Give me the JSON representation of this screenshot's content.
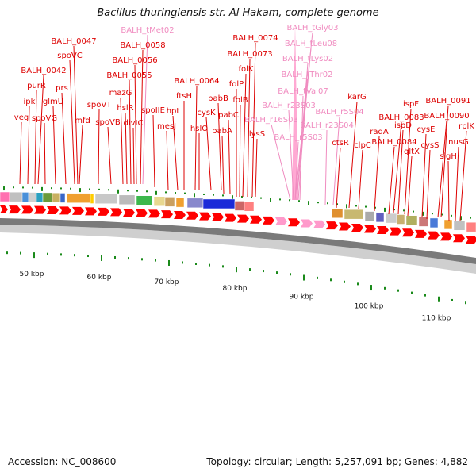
{
  "title": "Bacillus thuringiensis str. Al Hakam, complete genome",
  "accession": "Accession: NC_008600",
  "stats": "Topology: circular; Length: 5,257,091 bp; Genes: 4,882",
  "colors": {
    "gene_label": "#dd0000",
    "rna_label": "#f08cc0",
    "cds_arrow": "#ff0000",
    "rna_arrow": "#ff9acb",
    "tick": "#1a8a1a",
    "backbone": "#bbbbbb"
  },
  "scale_labels": [
    "50 kbp",
    "60 kbp",
    "70 kbp",
    "80 kbp",
    "90 kbp",
    "100 kbp",
    "110 kbp"
  ],
  "gene_labels": [
    {
      "text": "BALH_tMet02",
      "type": "rna"
    },
    {
      "text": "BALH_0047",
      "type": "gene"
    },
    {
      "text": "BALH_0058",
      "type": "gene"
    },
    {
      "text": "spoVC",
      "type": "gene"
    },
    {
      "text": "BALH_0056",
      "type": "gene"
    },
    {
      "text": "BALH_0042",
      "type": "gene"
    },
    {
      "text": "purR",
      "type": "gene"
    },
    {
      "text": "prs",
      "type": "gene"
    },
    {
      "text": "mazG",
      "type": "gene"
    },
    {
      "text": "BALH_0055",
      "type": "gene"
    },
    {
      "text": "ipk",
      "type": "gene"
    },
    {
      "text": "glmU",
      "type": "gene"
    },
    {
      "text": "hslR",
      "type": "gene"
    },
    {
      "text": "spoVT",
      "type": "gene"
    },
    {
      "text": "veg",
      "type": "gene"
    },
    {
      "text": "spoVG",
      "type": "gene"
    },
    {
      "text": "mfd",
      "type": "gene"
    },
    {
      "text": "spoVB",
      "type": "gene"
    },
    {
      "text": "divIC",
      "type": "gene"
    },
    {
      "text": "spoIIE",
      "type": "gene"
    },
    {
      "text": "BALH_0064",
      "type": "gene"
    },
    {
      "text": "hpt",
      "type": "gene"
    },
    {
      "text": "ftsH",
      "type": "gene"
    },
    {
      "text": "mesJ",
      "type": "gene"
    },
    {
      "text": "cysK",
      "type": "gene"
    },
    {
      "text": "hslO",
      "type": "gene"
    },
    {
      "text": "pabB",
      "type": "gene"
    },
    {
      "text": "pabC",
      "type": "gene"
    },
    {
      "text": "pabA",
      "type": "gene"
    },
    {
      "text": "BALH_0074",
      "type": "gene"
    },
    {
      "text": "BALH_0073",
      "type": "gene"
    },
    {
      "text": "folK",
      "type": "gene"
    },
    {
      "text": "folP",
      "type": "gene"
    },
    {
      "text": "folB",
      "type": "gene"
    },
    {
      "text": "lysS",
      "type": "gene"
    },
    {
      "text": "BALH_tGly03",
      "type": "rna"
    },
    {
      "text": "BALH_tLeu08",
      "type": "rna"
    },
    {
      "text": "BALH_tLys02",
      "type": "rna"
    },
    {
      "text": "BALH_tThr02",
      "type": "rna"
    },
    {
      "text": "BALH_tVal07",
      "type": "rna"
    },
    {
      "text": "BALH_r23S03",
      "type": "rna"
    },
    {
      "text": "BALH_r16S03",
      "type": "rna"
    },
    {
      "text": "BALH_r5S04",
      "type": "rna"
    },
    {
      "text": "BALH_r23S04",
      "type": "rna"
    },
    {
      "text": "BALH_r5S03",
      "type": "rna"
    },
    {
      "text": "karG",
      "type": "gene"
    },
    {
      "text": "ctsR",
      "type": "gene"
    },
    {
      "text": "clpC",
      "type": "gene"
    },
    {
      "text": "radA",
      "type": "gene"
    },
    {
      "text": "BALH_0083",
      "type": "gene"
    },
    {
      "text": "ispF",
      "type": "gene"
    },
    {
      "text": "ispD",
      "type": "gene"
    },
    {
      "text": "BALH_0084",
      "type": "gene"
    },
    {
      "text": "gltX",
      "type": "gene"
    },
    {
      "text": "BALH_0091",
      "type": "gene"
    },
    {
      "text": "BALH_0090",
      "type": "gene"
    },
    {
      "text": "cysE",
      "type": "gene"
    },
    {
      "text": "cysS",
      "type": "gene"
    },
    {
      "text": "rplK",
      "type": "gene"
    },
    {
      "text": "nusG",
      "type": "gene"
    },
    {
      "text": "sigH",
      "type": "gene"
    }
  ]
}
